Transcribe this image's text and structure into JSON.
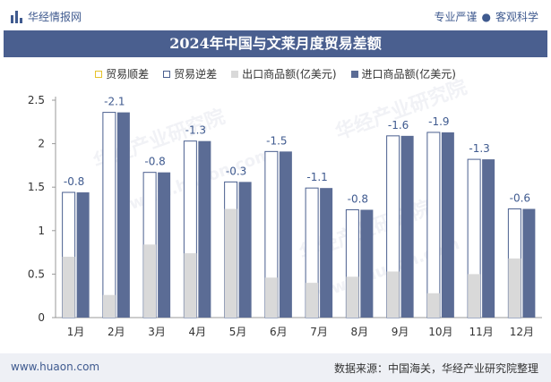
{
  "header": {
    "site_name": "华经情报网",
    "slogan_left": "专业严谨",
    "slogan_sep": "●",
    "slogan_right": "客观科学"
  },
  "title": "2024年中国与文莱月度贸易差额",
  "legend": {
    "surplus": "贸易顺差",
    "deficit": "贸易逆差",
    "export": "出口商品额(亿美元)",
    "import": "进口商品额(亿美元)"
  },
  "watermarks": [
    "华经产业研究院",
    "www.huaon.com",
    "华经产业研究院",
    "华经产业研究院",
    "www.huaon.com"
  ],
  "footer": {
    "url": "www.huaon.com",
    "source": "数据来源：中国海关，华经产业研究院整理"
  },
  "colors": {
    "title_bg": "#4a5f8f",
    "export": "#d9d9d9",
    "import": "#5b6c95",
    "surplus": "#e6c229",
    "deficit_border": "#4a5f8f",
    "brand": "#3f5a8f"
  },
  "chart_data": {
    "type": "bar",
    "categories": [
      "1月",
      "2月",
      "3月",
      "4月",
      "5月",
      "6月",
      "7月",
      "8月",
      "9月",
      "10月",
      "11月",
      "12月"
    ],
    "series": [
      {
        "name": "出口商品额(亿美元)",
        "values": [
          0.7,
          0.26,
          0.84,
          0.74,
          1.25,
          0.46,
          0.4,
          0.47,
          0.53,
          0.28,
          0.5,
          0.68
        ]
      },
      {
        "name": "进口商品额(亿美元)",
        "values": [
          1.44,
          2.36,
          1.67,
          2.03,
          1.56,
          1.91,
          1.49,
          1.24,
          2.09,
          2.13,
          1.82,
          1.25
        ]
      },
      {
        "name": "贸易逆差",
        "values": [
          -0.8,
          -2.1,
          -0.8,
          -1.3,
          -0.3,
          -1.5,
          -1.1,
          -0.8,
          -1.6,
          -1.9,
          -1.3,
          -0.6
        ]
      }
    ],
    "balance_labels": [
      "-0.8",
      "-2.1",
      "-0.8",
      "-1.3",
      "-0.3",
      "-1.5",
      "-1.1",
      "-0.8",
      "-1.6",
      "-1.9",
      "-1.3",
      "-0.6"
    ],
    "yticks": [
      "0",
      "0.5",
      "1",
      "1.5",
      "2",
      "2.5"
    ],
    "ylim": [
      0,
      2.5
    ],
    "grid": false,
    "legend_position": "top"
  }
}
